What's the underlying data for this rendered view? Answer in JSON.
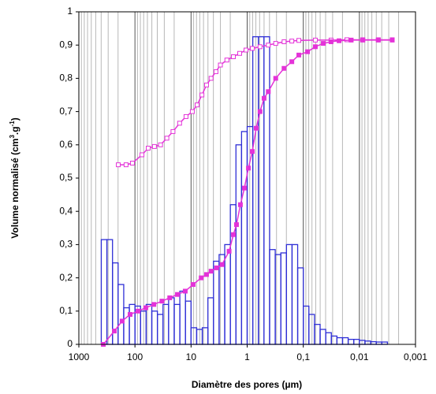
{
  "chart_data": {
    "type": "histogram",
    "x_label": "Diamètre des pores (µm)",
    "y_label": [
      "Volume normalisé (cm",
      "3",
      ".g",
      "-1",
      ")"
    ],
    "xscale": "log",
    "xlim": [
      1000,
      0.001
    ],
    "xticks": [
      1000,
      100,
      10,
      1,
      {
        "value": 0.1,
        "label": "0,1"
      },
      {
        "value": 0.01,
        "label": "0,01"
      },
      {
        "value": 0.001,
        "label": "0,001"
      }
    ],
    "ylim": [
      0,
      1
    ],
    "yticks": [
      0,
      {
        "value": 0.1,
        "label": "0,1"
      },
      {
        "value": 0.2,
        "label": "0,2"
      },
      {
        "value": 0.3,
        "label": "0,3"
      },
      {
        "value": 0.4,
        "label": "0,4"
      },
      {
        "value": 0.5,
        "label": "0,5"
      },
      {
        "value": 0.6,
        "label": "0,6"
      },
      {
        "value": 0.7,
        "label": "0,7"
      },
      {
        "value": 0.8,
        "label": "0,8"
      },
      {
        "value": 0.9,
        "label": "0,9"
      },
      1
    ],
    "grid": "x",
    "minor_grid": true,
    "color": "#2f2fd6",
    "bins": [
      398.1,
      316.2,
      251.2,
      199.5,
      158.5,
      125.9,
      100,
      79.43,
      63.1,
      50.12,
      39.81,
      31.62,
      25.12,
      19.95,
      15.85,
      12.59,
      10,
      7.943,
      6.31,
      5.012,
      3.981,
      3.162,
      2.512,
      1.995,
      1.585,
      1.259,
      1,
      0.7943,
      0.631,
      0.5012,
      0.3981,
      0.3162,
      0.2512,
      0.1995,
      0.1585,
      0.1259,
      0.1,
      0.07943,
      0.0631,
      0.05012,
      0.03981,
      0.03162,
      0.02512,
      0.01995,
      0.01585,
      0.01259,
      0.01,
      0.007943,
      0.00631,
      0.005012,
      0.003981,
      0.003162
    ],
    "values": [
      0.315,
      0.315,
      0.245,
      0.18,
      0.11,
      0.12,
      0.115,
      0.1,
      0.12,
      0.1,
      0.09,
      0.12,
      0.14,
      0.12,
      0.16,
      0.13,
      0.05,
      0.045,
      0.05,
      0.14,
      0.25,
      0.27,
      0.3,
      0.42,
      0.6,
      0.64,
      0.655,
      0.925,
      0.925,
      0.925,
      0.285,
      0.27,
      0.275,
      0.3,
      0.3,
      0.23,
      0.115,
      0.09,
      0.06,
      0.045,
      0.035,
      0.025,
      0.02,
      0.02,
      0.015,
      0.015,
      0.012,
      0.01,
      0.008,
      0.007,
      0.007
    ],
    "overlays": [
      {
        "type": "line",
        "color": "#e433d8",
        "marker": "open-square",
        "x": [
          198,
          144,
          111,
          75,
          58,
          45,
          35,
          27,
          21,
          16,
          12.3,
          9.5,
          7.8,
          6.4,
          5.3,
          4.4,
          3.6,
          3.0,
          2.3,
          1.76,
          1.36,
          1.05,
          0.81,
          0.59,
          0.42,
          0.31,
          0.22,
          0.16,
          0.12,
          0.061,
          0.032,
          0.0167,
          0.0087,
          0.0046,
          0.0026
        ],
        "values": [
          0.54,
          0.54,
          0.545,
          0.57,
          0.59,
          0.595,
          0.6,
          0.62,
          0.64,
          0.665,
          0.685,
          0.7,
          0.72,
          0.75,
          0.78,
          0.8,
          0.82,
          0.84,
          0.855,
          0.865,
          0.875,
          0.885,
          0.89,
          0.895,
          0.9,
          0.905,
          0.91,
          0.912,
          0.914,
          0.915,
          0.915,
          0.916,
          0.916,
          0.916,
          0.916
        ]
      },
      {
        "type": "line",
        "color": "#e433d8",
        "marker": "filled-square",
        "x": [
          366,
          233,
          169,
          122,
          88,
          64,
          46,
          33,
          24,
          17.5,
          12.7,
          9.2,
          6.6,
          5.3,
          4.4,
          3.5,
          2.8,
          2.1,
          1.76,
          1.55,
          1.32,
          1.12,
          0.95,
          0.81,
          0.69,
          0.59,
          0.5,
          0.42,
          0.31,
          0.22,
          0.16,
          0.12,
          0.084,
          0.061,
          0.044,
          0.032,
          0.023,
          0.014,
          0.0087,
          0.0046,
          0.0026
        ],
        "values": [
          0,
          0.04,
          0.07,
          0.09,
          0.1,
          0.11,
          0.12,
          0.13,
          0.14,
          0.15,
          0.16,
          0.18,
          0.2,
          0.21,
          0.22,
          0.23,
          0.24,
          0.28,
          0.33,
          0.36,
          0.42,
          0.47,
          0.53,
          0.58,
          0.65,
          0.7,
          0.74,
          0.76,
          0.8,
          0.83,
          0.85,
          0.87,
          0.88,
          0.895,
          0.905,
          0.91,
          0.913,
          0.915,
          0.915,
          0.915,
          0.915
        ]
      }
    ]
  }
}
